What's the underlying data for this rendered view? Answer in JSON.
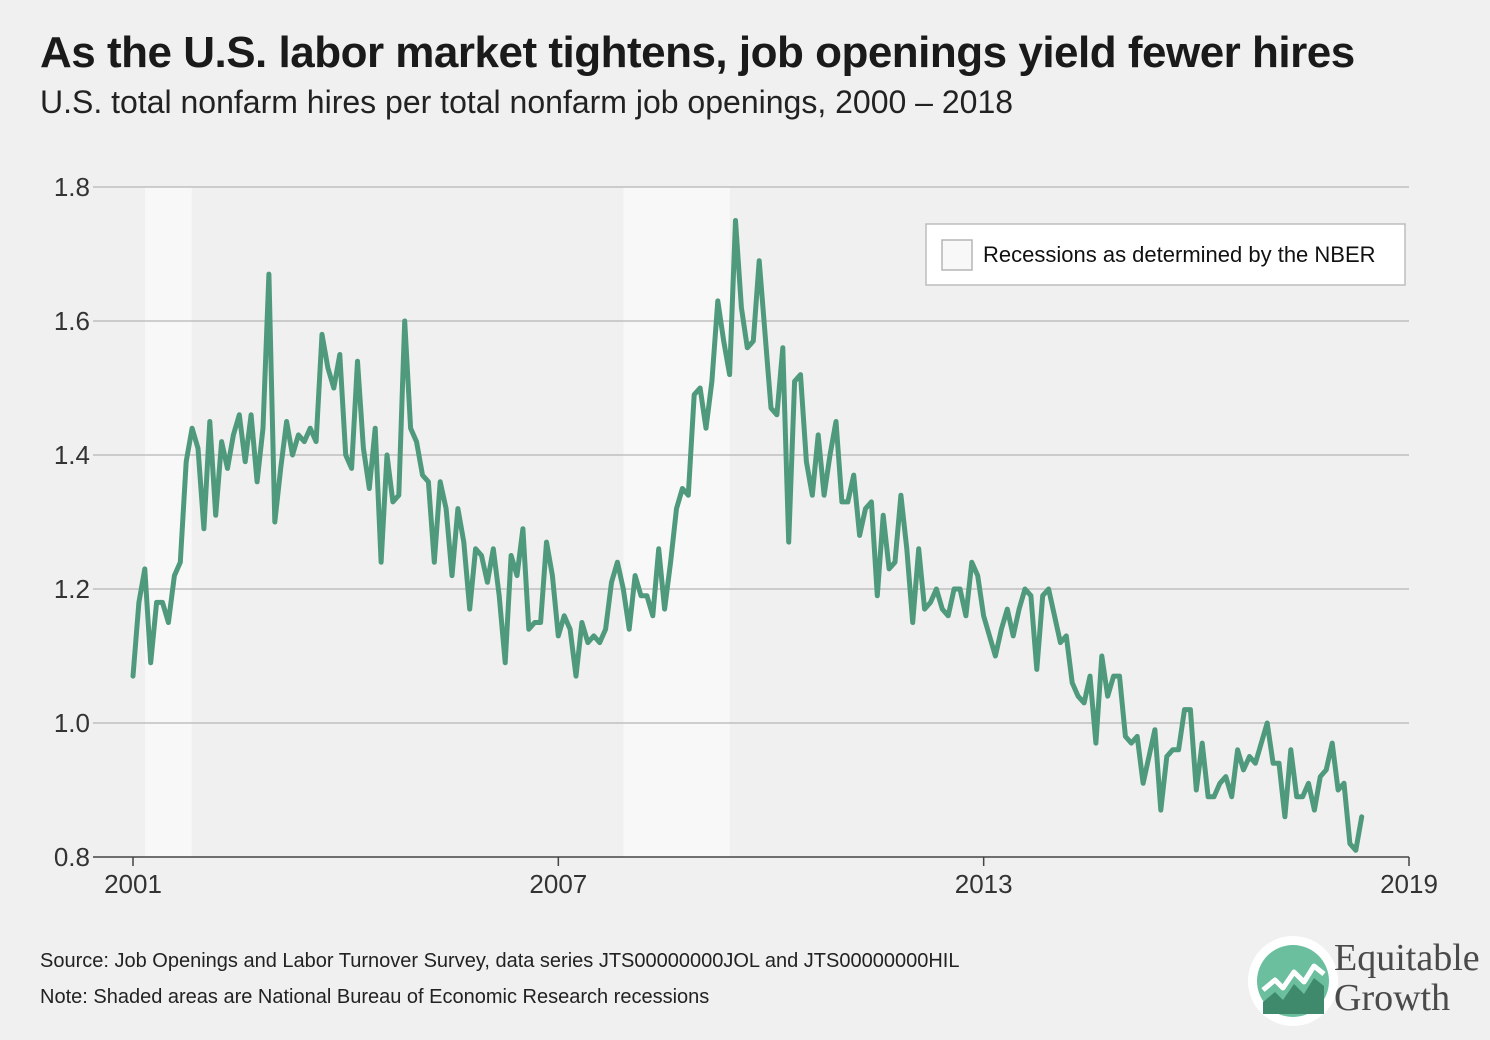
{
  "title": "As the U.S. labor market tightens, job openings yield fewer hires",
  "subtitle": "U.S. total nonfarm hires per total nonfarm job openings, 2000 – 2018",
  "source": "Source: Job Openings and Labor Turnover Survey, data series JTS00000000JOL and JTS00000000HIL",
  "note": "Note: Shaded areas are National Bureau of Economic Research recessions",
  "logo": {
    "line1": "Equitable",
    "line2": "Growth"
  },
  "colors": {
    "line": "#4f9a7c",
    "recession": "#f8f8f8",
    "grid": "#b5b5b5",
    "background": "#f0f0f0"
  },
  "chart_data": {
    "type": "line",
    "xlim": [
      2001,
      2019
    ],
    "ylim": [
      0.8,
      1.8
    ],
    "grid": true,
    "legend_position": "top-right",
    "xticks": [
      2001,
      2007,
      2013,
      2019
    ],
    "yticks": [
      0.8,
      1.0,
      1.2,
      1.4,
      1.6,
      1.8
    ],
    "xtick_labels": [
      "2001",
      "2007",
      "2013",
      "2019"
    ],
    "ytick_labels": [
      "0.8",
      "1.0",
      "1.2",
      "1.4",
      "1.6",
      "1.8"
    ],
    "legend": {
      "label": "Recessions as determined by the NBER"
    },
    "recessions": [
      {
        "start": 2001.17,
        "end": 2001.83
      },
      {
        "start": 2007.92,
        "end": 2009.42
      }
    ],
    "series": [
      {
        "start": 2001.0,
        "step": 0.08333,
        "values": [
          1.07,
          1.18,
          1.23,
          1.09,
          1.18,
          1.18,
          1.15,
          1.22,
          1.24,
          1.39,
          1.44,
          1.41,
          1.29,
          1.45,
          1.31,
          1.42,
          1.38,
          1.43,
          1.46,
          1.39,
          1.46,
          1.36,
          1.44,
          1.67,
          1.3,
          1.38,
          1.45,
          1.4,
          1.43,
          1.42,
          1.44,
          1.42,
          1.58,
          1.53,
          1.5,
          1.55,
          1.4,
          1.38,
          1.54,
          1.41,
          1.35,
          1.44,
          1.24,
          1.4,
          1.33,
          1.34,
          1.6,
          1.44,
          1.42,
          1.37,
          1.36,
          1.24,
          1.36,
          1.32,
          1.22,
          1.32,
          1.27,
          1.17,
          1.26,
          1.25,
          1.21,
          1.26,
          1.19,
          1.09,
          1.25,
          1.22,
          1.29,
          1.14,
          1.15,
          1.15,
          1.27,
          1.22,
          1.13,
          1.16,
          1.14,
          1.07,
          1.15,
          1.12,
          1.13,
          1.12,
          1.14,
          1.21,
          1.24,
          1.2,
          1.14,
          1.22,
          1.19,
          1.19,
          1.16,
          1.26,
          1.17,
          1.24,
          1.32,
          1.35,
          1.34,
          1.49,
          1.5,
          1.44,
          1.51,
          1.63,
          1.57,
          1.52,
          1.75,
          1.62,
          1.56,
          1.57,
          1.69,
          1.58,
          1.47,
          1.46,
          1.56,
          1.27,
          1.51,
          1.52,
          1.39,
          1.34,
          1.43,
          1.34,
          1.4,
          1.45,
          1.33,
          1.33,
          1.37,
          1.28,
          1.32,
          1.33,
          1.19,
          1.31,
          1.23,
          1.24,
          1.34,
          1.26,
          1.15,
          1.26,
          1.17,
          1.18,
          1.2,
          1.17,
          1.16,
          1.2,
          1.2,
          1.16,
          1.24,
          1.22,
          1.16,
          1.13,
          1.1,
          1.14,
          1.17,
          1.13,
          1.17,
          1.2,
          1.19,
          1.08,
          1.19,
          1.2,
          1.16,
          1.12,
          1.13,
          1.06,
          1.04,
          1.03,
          1.07,
          0.97,
          1.1,
          1.04,
          1.07,
          1.07,
          0.98,
          0.97,
          0.98,
          0.91,
          0.95,
          0.99,
          0.87,
          0.95,
          0.96,
          0.96,
          1.02,
          1.02,
          0.9,
          0.97,
          0.89,
          0.89,
          0.91,
          0.92,
          0.89,
          0.96,
          0.93,
          0.95,
          0.94,
          0.97,
          1.0,
          0.94,
          0.94,
          0.86,
          0.96,
          0.89,
          0.89,
          0.91,
          0.87,
          0.92,
          0.93,
          0.97,
          0.9,
          0.91,
          0.82,
          0.81,
          0.86
        ]
      }
    ]
  }
}
